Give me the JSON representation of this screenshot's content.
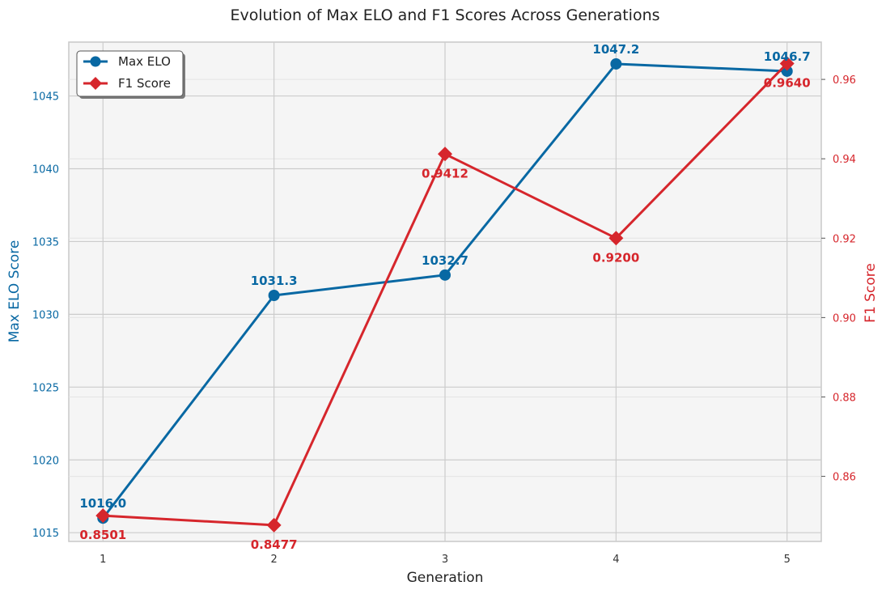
{
  "chart_data": {
    "type": "line",
    "title": "Evolution of Max ELO and F1 Scores Across Generations",
    "xlabel": "Generation",
    "x": [
      1,
      2,
      3,
      4,
      5
    ],
    "x_tick_labels": [
      "1",
      "2",
      "3",
      "4",
      "5"
    ],
    "series": [
      {
        "name": "Max ELO",
        "axis": "left",
        "ylabel": "Max ELO Score",
        "color": "#0868a3",
        "marker": "circle",
        "values": [
          1016.0,
          1031.3,
          1032.7,
          1047.2,
          1046.7
        ],
        "data_labels": [
          "1016.0",
          "1031.3",
          "1032.7",
          "1047.2",
          "1046.7"
        ]
      },
      {
        "name": "F1 Score",
        "axis": "right",
        "ylabel": "F1 Score",
        "color": "#d6262c",
        "marker": "diamond",
        "values": [
          0.8501,
          0.8477,
          0.9412,
          0.92,
          0.964
        ],
        "data_labels": [
          "0.8501",
          "0.8477",
          "0.9412",
          "0.9200",
          "0.9640"
        ]
      }
    ],
    "left_axis": {
      "ylim": [
        1014.4,
        1048.7
      ],
      "ticks": [
        1015,
        1020,
        1025,
        1030,
        1035,
        1040,
        1045
      ],
      "tick_labels": [
        "1015",
        "1020",
        "1025",
        "1030",
        "1035",
        "1040",
        "1045"
      ]
    },
    "right_axis": {
      "ylim": [
        0.8436,
        0.9694
      ],
      "ticks": [
        0.86,
        0.88,
        0.9,
        0.92,
        0.94,
        0.96
      ],
      "tick_labels": [
        "0.86",
        "0.88",
        "0.90",
        "0.92",
        "0.94",
        "0.96"
      ]
    },
    "xlim": [
      0.8,
      5.2
    ],
    "grid": true,
    "legend": {
      "position": "top-left",
      "entries": [
        "Max ELO",
        "F1 Score"
      ]
    }
  }
}
